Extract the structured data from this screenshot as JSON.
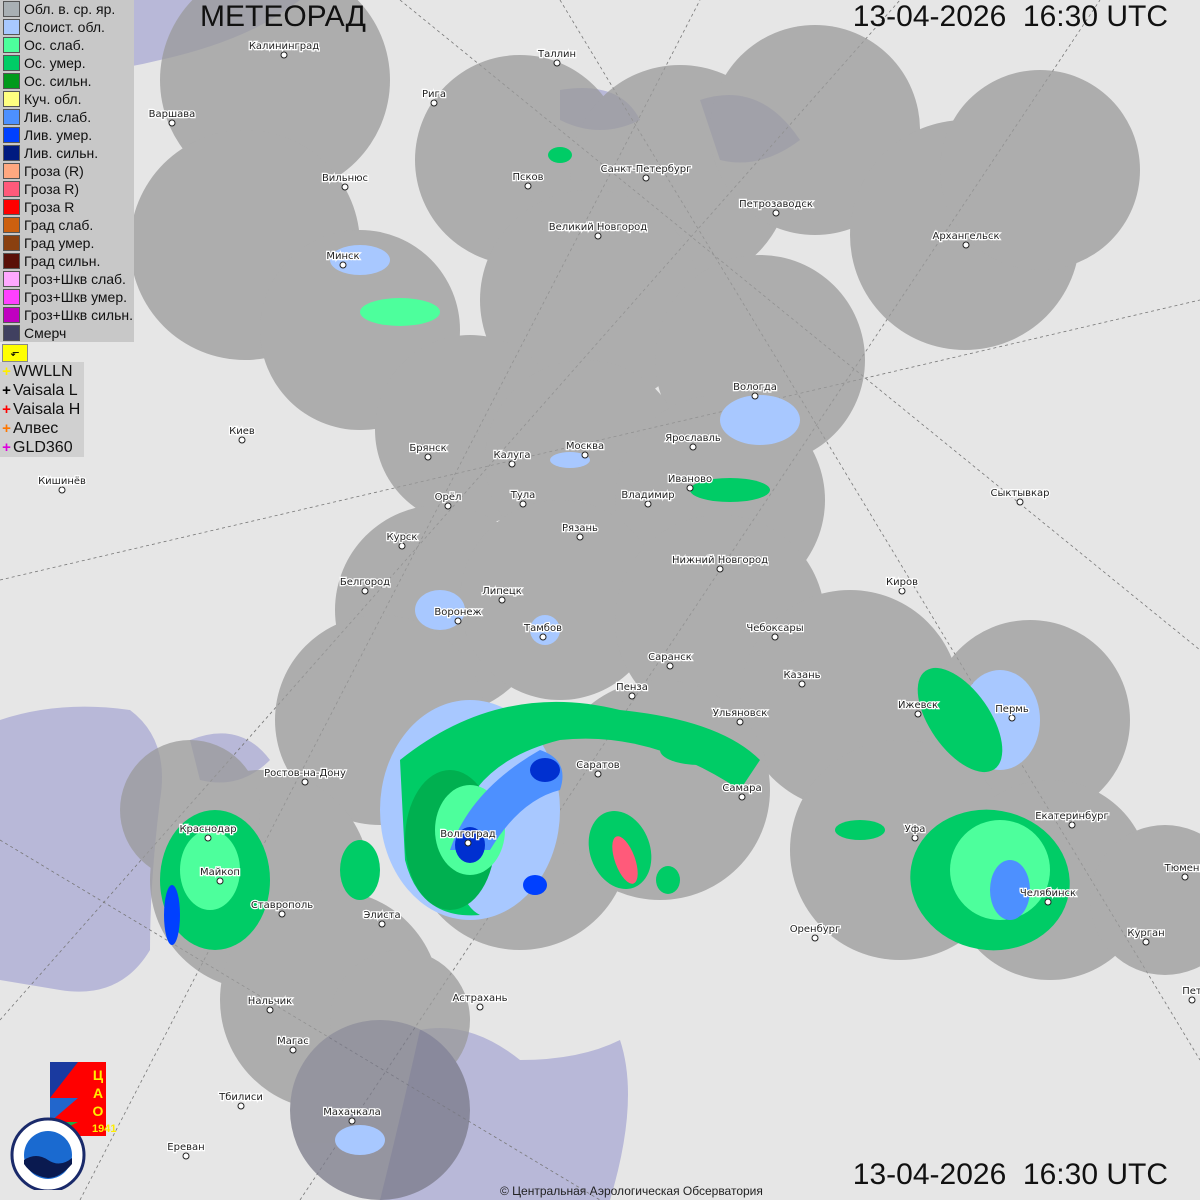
{
  "header": {
    "title": "МЕТЕОРАД",
    "timestamp_top": "13-04-2026  16:30 UTC",
    "timestamp_bottom": "13-04-2026  16:30 UTC"
  },
  "legend": {
    "items": [
      {
        "label": "Обл. в. ср. яр.",
        "color": "#a9b0b4"
      },
      {
        "label": "Слоист. обл.",
        "color": "#a8c8ff"
      },
      {
        "label": "Ос. слаб.",
        "color": "#4dff9c"
      },
      {
        "label": "Ос. умер.",
        "color": "#00cc66"
      },
      {
        "label": "Ос. сильн.",
        "color": "#009a1c"
      },
      {
        "label": "Куч. обл.",
        "color": "#ffff80"
      },
      {
        "label": "Лив. слаб.",
        "color": "#4d90ff"
      },
      {
        "label": "Лив. умер.",
        "color": "#0040ff"
      },
      {
        "label": "Лив. сильн.",
        "color": "#001a80"
      },
      {
        "label": "Гроза (R)",
        "color": "#ffa880"
      },
      {
        "label": "Гроза R)",
        "color": "#ff5a7a"
      },
      {
        "label": "Гроза R",
        "color": "#ff0000"
      },
      {
        "label": "Град слаб.",
        "color": "#cc6010"
      },
      {
        "label": "Град умер.",
        "color": "#8a4010"
      },
      {
        "label": "Град сильн.",
        "color": "#5a1008"
      },
      {
        "label": "Гроз+Шкв слаб.",
        "color": "#ffa8ff"
      },
      {
        "label": "Гроз+Шкв умер.",
        "color": "#ff40ff"
      },
      {
        "label": "Гроз+Шкв сильн.",
        "color": "#c000c0"
      },
      {
        "label": "Смерч",
        "color": "#404060"
      }
    ],
    "flag_symbol": "⬐"
  },
  "lightning": [
    {
      "label": "WWLLN",
      "color": "#ffee00"
    },
    {
      "label": "Vaisala L",
      "color": "#000000"
    },
    {
      "label": "Vaisala H",
      "color": "#ff0000"
    },
    {
      "label": "Алвес",
      "color": "#ff7700"
    },
    {
      "label": "GLD360",
      "color": "#dd00dd"
    }
  ],
  "cities": [
    "Калининград",
    "Таллин",
    "Рига",
    "Варшава",
    "Санкт-Петербург",
    "Псков",
    "Вильнюс",
    "Петрозаводск",
    "Великий Новгород",
    "Архангельск",
    "Минск",
    "Вологда",
    "Киев",
    "Ярославль",
    "Москва",
    "Брянск",
    "Калуга",
    "Кишинёв",
    "Иваново",
    "Орёл",
    "Тула",
    "Владимир",
    "Сыктывкар",
    "Рязань",
    "Курск",
    "Нижний Новгород",
    "Киров",
    "Белгород",
    "Липецк",
    "Воронеж",
    "Тамбов",
    "Чебоксары",
    "Саранск",
    "Казань",
    "Пенза",
    "Ижевск",
    "Пермь",
    "Ульяновск",
    "Саратов",
    "Ростов-на-Дону",
    "Самара",
    "Краснодар",
    "Уфа",
    "Екатеринбург",
    "Волгоград",
    "Майкоп",
    "Тюмень",
    "Челябинск",
    "Ставрополь",
    "Элиста",
    "Оренбург",
    "Курган",
    "Нальчик",
    "Астрахань",
    "Магас",
    "Тбилиси",
    "Махачкала",
    "Ереван",
    "Пет"
  ],
  "logos": {
    "cao": "ЦАО 1941",
    "roshydromet": "РОСГИДРОМЕТ ROSHYDROMET"
  },
  "footer": {
    "copyright": "© Центральная Аэрологическая Обсерватория"
  }
}
